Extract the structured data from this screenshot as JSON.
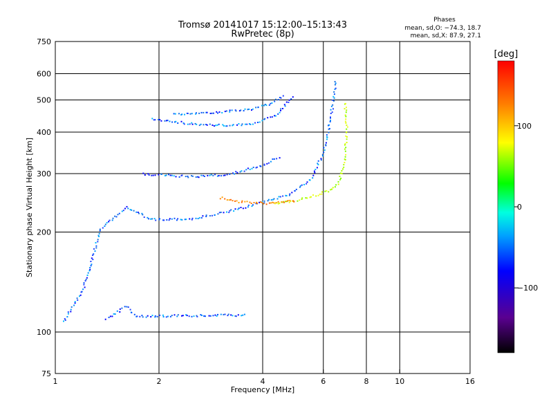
{
  "header": {
    "title": "Tromsø 20141017 15:12:00–15:13:43",
    "subtitle": "RwPretec (8p)",
    "stats_title": "Phases",
    "stats_o": "mean, sd,O: −74.3, 18.7",
    "stats_x": "mean, sd,X:  87.9, 27.1"
  },
  "chart_data": {
    "type": "scatter",
    "title": "Tromsø 20141017 15:12:00–15:13:43",
    "subtitle": "RwPretec (8p)",
    "xlabel": "Frequency [MHz]",
    "ylabel": "Stationary phase Virtual Height [km]",
    "x_scale": "log",
    "y_scale": "log",
    "xlim": [
      1,
      16
    ],
    "ylim": [
      75,
      750
    ],
    "x_ticks": [
      1,
      2,
      4,
      6,
      8,
      10,
      16
    ],
    "x_tick_labels": [
      "1",
      "2",
      "4",
      "6",
      "8",
      "10",
      "16"
    ],
    "y_ticks": [
      75,
      100,
      200,
      300,
      400,
      500,
      600,
      750
    ],
    "y_tick_labels": [
      "75",
      "100",
      "200",
      "300",
      "400",
      "500",
      "600",
      "750"
    ],
    "grid": true,
    "grid_x": [
      2,
      4,
      6,
      8,
      10
    ],
    "grid_y": [
      100,
      200,
      300,
      400,
      500,
      600
    ],
    "colorbar": {
      "label": "[deg]",
      "range": [
        -180,
        180
      ],
      "ticks": [
        100,
        0,
        -100
      ],
      "tick_labels": [
        "100",
        "0",
        "−100"
      ],
      "colors": [
        "#000000",
        "#5a0090",
        "#0000ff",
        "#00a0ff",
        "#00ffe0",
        "#00ff00",
        "#ffff00",
        "#ff8000",
        "#ff0000"
      ]
    },
    "series": [
      {
        "values": [
          [
            1.05,
            108
          ],
          [
            1.2,
            135
          ],
          [
            1.35,
            205
          ],
          [
            1.6,
            238
          ],
          [
            1.9,
            219
          ],
          [
            2.5,
            220
          ],
          [
            3.2,
            232
          ],
          [
            4.0,
            247
          ],
          [
            4.8,
            262
          ],
          [
            5.5,
            290
          ],
          [
            6.0,
            350
          ],
          [
            6.3,
            455
          ],
          [
            6.5,
            580
          ]
        ],
        "hue": "blue"
      },
      {
        "values": [
          [
            4.3,
            244
          ],
          [
            5.0,
            250
          ],
          [
            5.6,
            258
          ],
          [
            6.2,
            267
          ],
          [
            6.6,
            280
          ],
          [
            6.9,
            330
          ],
          [
            7.0,
            410
          ],
          [
            6.9,
            500
          ]
        ],
        "hue": "yellow-green"
      },
      {
        "values": [
          [
            1.9,
            440
          ],
          [
            2.5,
            425
          ],
          [
            3.2,
            420
          ],
          [
            3.8,
            428
          ],
          [
            4.4,
            455
          ],
          [
            4.9,
            520
          ]
        ],
        "hue": "blue"
      },
      {
        "values": [
          [
            2.2,
            455
          ],
          [
            3.0,
            462
          ],
          [
            3.7,
            470
          ],
          [
            4.2,
            490
          ],
          [
            4.6,
            520
          ]
        ],
        "hue": "blue"
      },
      {
        "values": [
          [
            1.8,
            300
          ],
          [
            2.5,
            295
          ],
          [
            3.2,
            300
          ],
          [
            4.0,
            320
          ],
          [
            4.5,
            340
          ]
        ],
        "hue": "blue"
      },
      {
        "values": [
          [
            3.0,
            255
          ],
          [
            3.4,
            248
          ],
          [
            4.2,
            245
          ],
          [
            5.0,
            250
          ]
        ],
        "hue": "orange"
      },
      {
        "values": [
          [
            1.4,
            110
          ],
          [
            1.6,
            120
          ],
          [
            1.7,
            112
          ],
          [
            3.6,
            113
          ]
        ],
        "hue": "blue"
      }
    ]
  }
}
